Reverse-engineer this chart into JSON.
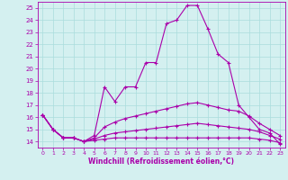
{
  "xlabel": "Windchill (Refroidissement éolien,°C)",
  "bg_color": "#d4f0f0",
  "line_color": "#aa00aa",
  "grid_color": "#aadddd",
  "ylim": [
    13.5,
    25.5
  ],
  "xlim": [
    -0.5,
    23.5
  ],
  "yticks": [
    14,
    15,
    16,
    17,
    18,
    19,
    20,
    21,
    22,
    23,
    24,
    25
  ],
  "xticks": [
    0,
    1,
    2,
    3,
    4,
    5,
    6,
    7,
    8,
    9,
    10,
    11,
    12,
    13,
    14,
    15,
    16,
    17,
    18,
    19,
    20,
    21,
    22,
    23
  ],
  "series": [
    [
      16.2,
      15.0,
      14.3,
      14.3,
      14.0,
      14.5,
      18.5,
      17.3,
      18.5,
      18.5,
      20.5,
      20.5,
      23.7,
      24.0,
      25.2,
      25.2,
      23.3,
      21.2,
      20.5,
      17.0,
      16.0,
      15.0,
      14.7,
      13.8
    ],
    [
      16.2,
      15.0,
      14.3,
      14.3,
      14.0,
      14.3,
      15.2,
      15.6,
      15.9,
      16.1,
      16.3,
      16.5,
      16.7,
      16.9,
      17.1,
      17.2,
      17.0,
      16.8,
      16.6,
      16.5,
      16.1,
      15.5,
      15.0,
      14.5
    ],
    [
      16.2,
      15.0,
      14.3,
      14.3,
      14.0,
      14.2,
      14.5,
      14.7,
      14.8,
      14.9,
      15.0,
      15.1,
      15.2,
      15.3,
      15.4,
      15.5,
      15.4,
      15.3,
      15.2,
      15.1,
      15.0,
      14.8,
      14.5,
      14.2
    ],
    [
      16.2,
      15.0,
      14.3,
      14.3,
      14.0,
      14.1,
      14.2,
      14.3,
      14.3,
      14.3,
      14.3,
      14.3,
      14.3,
      14.3,
      14.3,
      14.3,
      14.3,
      14.3,
      14.3,
      14.3,
      14.3,
      14.2,
      14.1,
      13.9
    ]
  ]
}
